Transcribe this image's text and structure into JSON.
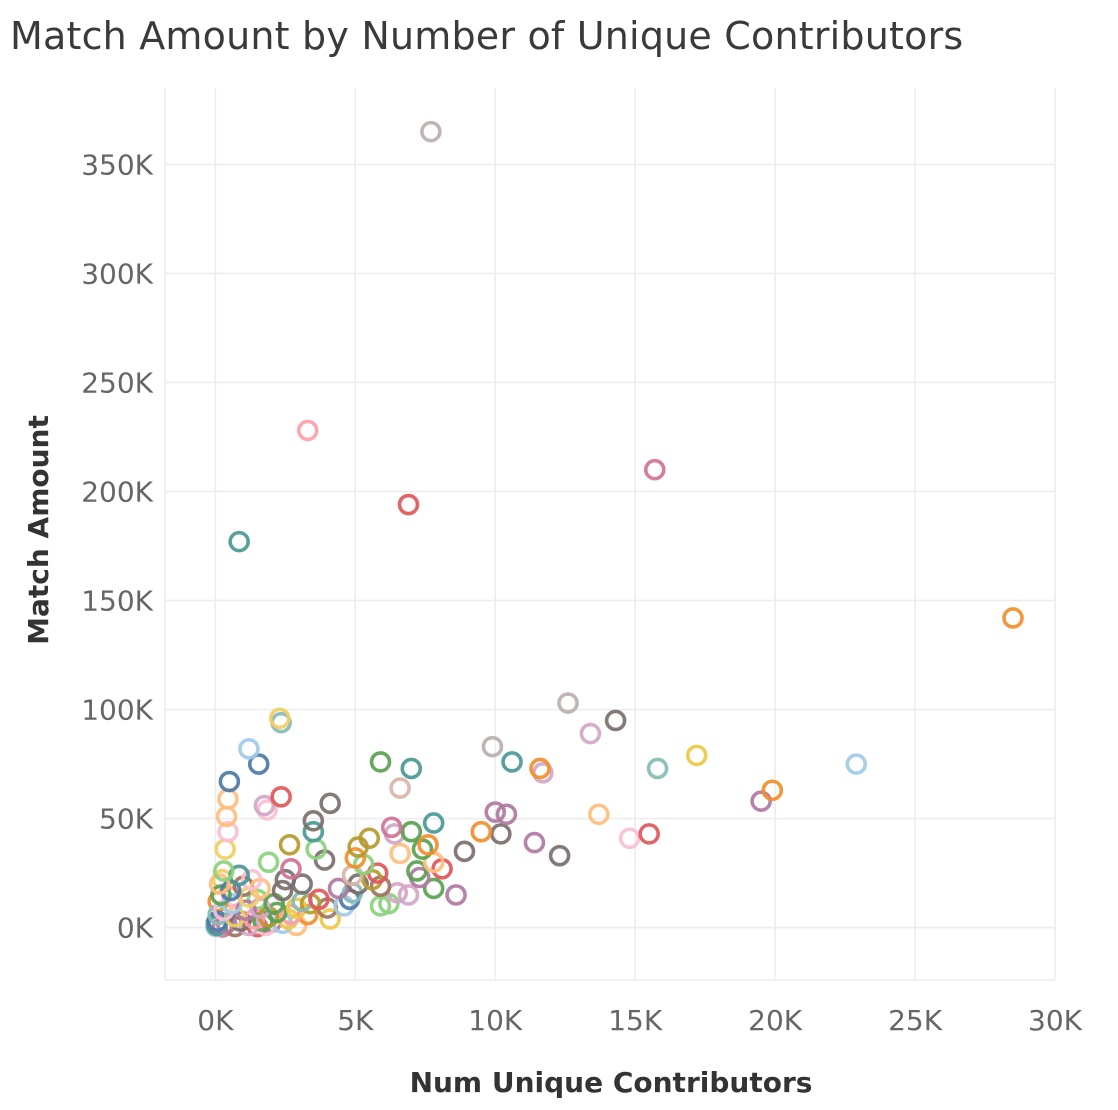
{
  "chart_data": {
    "type": "scatter",
    "title": "Match Amount by Number of Unique Contributors",
    "xlabel": "Num Unique Contributors",
    "ylabel": "Match Amount",
    "xlim": [
      -1800,
      30000
    ],
    "ylim": [
      -24000,
      385000
    ],
    "x_ticks": [
      0,
      5000,
      10000,
      15000,
      20000,
      25000,
      30000
    ],
    "x_tick_labels": [
      "0K",
      "5K",
      "10K",
      "15K",
      "20K",
      "25K",
      "30K"
    ],
    "y_ticks": [
      0,
      50000,
      100000,
      150000,
      200000,
      250000,
      300000,
      350000
    ],
    "y_tick_labels": [
      "0K",
      "50K",
      "100K",
      "150K",
      "200K",
      "250K",
      "300K",
      "350K"
    ],
    "grid": true,
    "legend": "none",
    "marker": "hollow-circle",
    "palette": [
      "#4e79a7",
      "#f28e2b",
      "#e15759",
      "#76b7b2",
      "#59a14f",
      "#edc948",
      "#b07aa1",
      "#ff9da7",
      "#9c755f",
      "#bab0ac",
      "#a0cbe8",
      "#ffbe7d",
      "#8cd17d",
      "#b6992d",
      "#f1ce63",
      "#499894",
      "#86bcb6",
      "#d37295",
      "#fabfd2",
      "#d4a6c8",
      "#79706e",
      "#d7b5a6"
    ],
    "points": [
      {
        "x": 7700,
        "y": 365000,
        "c": "#bab0ac"
      },
      {
        "x": 3300,
        "y": 228000,
        "c": "#ff9da7"
      },
      {
        "x": 15700,
        "y": 210000,
        "c": "#d37295"
      },
      {
        "x": 6900,
        "y": 194000,
        "c": "#e15759"
      },
      {
        "x": 850,
        "y": 177000,
        "c": "#499894"
      },
      {
        "x": 28500,
        "y": 142000,
        "c": "#f28e2b"
      },
      {
        "x": 12600,
        "y": 103000,
        "c": "#bab0ac"
      },
      {
        "x": 2300,
        "y": 96000,
        "c": "#f1ce63"
      },
      {
        "x": 14300,
        "y": 95000,
        "c": "#79706e"
      },
      {
        "x": 2350,
        "y": 94000,
        "c": "#86bcb6"
      },
      {
        "x": 13400,
        "y": 89000,
        "c": "#d4a6c8"
      },
      {
        "x": 9900,
        "y": 83000,
        "c": "#bab0ac"
      },
      {
        "x": 1200,
        "y": 82000,
        "c": "#a0cbe8"
      },
      {
        "x": 17200,
        "y": 79000,
        "c": "#edc948"
      },
      {
        "x": 5900,
        "y": 76000,
        "c": "#59a14f"
      },
      {
        "x": 10600,
        "y": 76000,
        "c": "#499894"
      },
      {
        "x": 1550,
        "y": 75000,
        "c": "#4e79a7"
      },
      {
        "x": 22900,
        "y": 75000,
        "c": "#a0cbe8"
      },
      {
        "x": 7000,
        "y": 73000,
        "c": "#499894"
      },
      {
        "x": 11600,
        "y": 73000,
        "c": "#f28e2b"
      },
      {
        "x": 15800,
        "y": 73000,
        "c": "#86bcb6"
      },
      {
        "x": 11700,
        "y": 71000,
        "c": "#d4a6c8"
      },
      {
        "x": 500,
        "y": 67000,
        "c": "#4e79a7"
      },
      {
        "x": 6600,
        "y": 64000,
        "c": "#d7b5a6"
      },
      {
        "x": 19900,
        "y": 63000,
        "c": "#f28e2b"
      },
      {
        "x": 2350,
        "y": 60000,
        "c": "#e15759"
      },
      {
        "x": 450,
        "y": 59000,
        "c": "#ffbe7d"
      },
      {
        "x": 19500,
        "y": 58000,
        "c": "#b07aa1"
      },
      {
        "x": 4100,
        "y": 57000,
        "c": "#79706e"
      },
      {
        "x": 1750,
        "y": 56000,
        "c": "#d4a6c8"
      },
      {
        "x": 1850,
        "y": 54000,
        "c": "#fabfd2"
      },
      {
        "x": 10000,
        "y": 53000,
        "c": "#b07aa1"
      },
      {
        "x": 10400,
        "y": 52000,
        "c": "#b07aa1"
      },
      {
        "x": 13700,
        "y": 52000,
        "c": "#ffbe7d"
      },
      {
        "x": 400,
        "y": 51000,
        "c": "#ffbe7d"
      },
      {
        "x": 3500,
        "y": 49000,
        "c": "#79706e"
      },
      {
        "x": 7800,
        "y": 48000,
        "c": "#499894"
      },
      {
        "x": 6300,
        "y": 46000,
        "c": "#d37295"
      },
      {
        "x": 9500,
        "y": 44000,
        "c": "#f28e2b"
      },
      {
        "x": 7000,
        "y": 44000,
        "c": "#59a14f"
      },
      {
        "x": 3500,
        "y": 44000,
        "c": "#499894"
      },
      {
        "x": 450,
        "y": 44000,
        "c": "#fabfd2"
      },
      {
        "x": 10200,
        "y": 43000,
        "c": "#79706e"
      },
      {
        "x": 15500,
        "y": 43000,
        "c": "#e15759"
      },
      {
        "x": 6400,
        "y": 43000,
        "c": "#d4a6c8"
      },
      {
        "x": 5500,
        "y": 41000,
        "c": "#b6992d"
      },
      {
        "x": 14800,
        "y": 41000,
        "c": "#fabfd2"
      },
      {
        "x": 11400,
        "y": 39000,
        "c": "#b07aa1"
      },
      {
        "x": 2650,
        "y": 38000,
        "c": "#b6992d"
      },
      {
        "x": 7600,
        "y": 38000,
        "c": "#f28e2b"
      },
      {
        "x": 5100,
        "y": 37000,
        "c": "#b6992d"
      },
      {
        "x": 350,
        "y": 36000,
        "c": "#f1ce63"
      },
      {
        "x": 7400,
        "y": 36000,
        "c": "#59a14f"
      },
      {
        "x": 3600,
        "y": 36000,
        "c": "#8cd17d"
      },
      {
        "x": 8900,
        "y": 35000,
        "c": "#79706e"
      },
      {
        "x": 6600,
        "y": 34000,
        "c": "#ffbe7d"
      },
      {
        "x": 12300,
        "y": 33000,
        "c": "#79706e"
      },
      {
        "x": 5000,
        "y": 32000,
        "c": "#f28e2b"
      },
      {
        "x": 3900,
        "y": 31000,
        "c": "#79706e"
      },
      {
        "x": 1900,
        "y": 30000,
        "c": "#8cd17d"
      },
      {
        "x": 7800,
        "y": 30000,
        "c": "#ffbe7d"
      },
      {
        "x": 5300,
        "y": 29000,
        "c": "#8cd17d"
      },
      {
        "x": 2700,
        "y": 27000,
        "c": "#d37295"
      },
      {
        "x": 8100,
        "y": 27000,
        "c": "#e15759"
      },
      {
        "x": 300,
        "y": 26000,
        "c": "#8cd17d"
      },
      {
        "x": 7200,
        "y": 26000,
        "c": "#59a14f"
      },
      {
        "x": 5800,
        "y": 25000,
        "c": "#e15759"
      },
      {
        "x": 4900,
        "y": 24000,
        "c": "#d7b5a6"
      },
      {
        "x": 850,
        "y": 24000,
        "c": "#499894"
      },
      {
        "x": 7300,
        "y": 23000,
        "c": "#b07aa1"
      },
      {
        "x": 1300,
        "y": 22000,
        "c": "#fabfd2"
      },
      {
        "x": 2500,
        "y": 22000,
        "c": "#79706e"
      },
      {
        "x": 5600,
        "y": 22000,
        "c": "#b6992d"
      },
      {
        "x": 150,
        "y": 20000,
        "c": "#ffbe7d"
      },
      {
        "x": 3100,
        "y": 20000,
        "c": "#79706e"
      },
      {
        "x": 5100,
        "y": 20000,
        "c": "#79706e"
      },
      {
        "x": 5900,
        "y": 19000,
        "c": "#9c755f"
      },
      {
        "x": 7800,
        "y": 18000,
        "c": "#59a14f"
      },
      {
        "x": 1600,
        "y": 18000,
        "c": "#ffbe7d"
      },
      {
        "x": 4400,
        "y": 18000,
        "c": "#b07aa1"
      },
      {
        "x": 550,
        "y": 17000,
        "c": "#4e79a7"
      },
      {
        "x": 2400,
        "y": 17000,
        "c": "#79706e"
      },
      {
        "x": 6500,
        "y": 16000,
        "c": "#d4a6c8"
      },
      {
        "x": 4900,
        "y": 16000,
        "c": "#86bcb6"
      },
      {
        "x": 200,
        "y": 15000,
        "c": "#59a14f"
      },
      {
        "x": 6900,
        "y": 15000,
        "c": "#d4a6c8"
      },
      {
        "x": 8600,
        "y": 15000,
        "c": "#b07aa1"
      },
      {
        "x": 1200,
        "y": 14000,
        "c": "#f1ce63"
      },
      {
        "x": 3700,
        "y": 13000,
        "c": "#e15759"
      },
      {
        "x": 4800,
        "y": 13000,
        "c": "#4e79a7"
      },
      {
        "x": 3100,
        "y": 12000,
        "c": "#86bcb6"
      },
      {
        "x": 2100,
        "y": 11000,
        "c": "#59a14f"
      },
      {
        "x": 3400,
        "y": 11000,
        "c": "#b6992d"
      },
      {
        "x": 6200,
        "y": 11000,
        "c": "#8cd17d"
      },
      {
        "x": 600,
        "y": 11000,
        "c": "#a0cbe8"
      },
      {
        "x": 4600,
        "y": 10000,
        "c": "#a0cbe8"
      },
      {
        "x": 5900,
        "y": 10000,
        "c": "#8cd17d"
      },
      {
        "x": 2900,
        "y": 9000,
        "c": "#edc948"
      },
      {
        "x": 1600,
        "y": 9000,
        "c": "#d4a6c8"
      },
      {
        "x": 4000,
        "y": 9000,
        "c": "#9c755f"
      },
      {
        "x": 300,
        "y": 8000,
        "c": "#fabfd2"
      },
      {
        "x": 1100,
        "y": 8000,
        "c": "#b07aa1"
      },
      {
        "x": 2200,
        "y": 7000,
        "c": "#59a14f"
      },
      {
        "x": 2700,
        "y": 6000,
        "c": "#ff9da7"
      },
      {
        "x": 3300,
        "y": 6000,
        "c": "#f28e2b"
      },
      {
        "x": 100,
        "y": 6000,
        "c": "#86bcb6"
      },
      {
        "x": 1900,
        "y": 5000,
        "c": "#b6992d"
      },
      {
        "x": 700,
        "y": 5000,
        "c": "#f1ce63"
      },
      {
        "x": 1400,
        "y": 4000,
        "c": "#ff9da7"
      },
      {
        "x": 2600,
        "y": 4000,
        "c": "#edc948"
      },
      {
        "x": 4100,
        "y": 4000,
        "c": "#edc948"
      },
      {
        "x": 80,
        "y": 3000,
        "c": "#4e79a7"
      },
      {
        "x": 900,
        "y": 3000,
        "c": "#79706e"
      },
      {
        "x": 1700,
        "y": 3000,
        "c": "#59a14f"
      },
      {
        "x": 2400,
        "y": 2000,
        "c": "#a0cbe8"
      },
      {
        "x": 400,
        "y": 2000,
        "c": "#b07aa1"
      },
      {
        "x": 1200,
        "y": 1000,
        "c": "#d4a6c8"
      },
      {
        "x": 50,
        "y": 1000,
        "c": "#499894"
      },
      {
        "x": 1800,
        "y": 1000,
        "c": "#fabfd2"
      },
      {
        "x": 2900,
        "y": 1000,
        "c": "#ffbe7d"
      },
      {
        "x": 700,
        "y": 500,
        "c": "#9c755f"
      },
      {
        "x": 20,
        "y": 500,
        "c": "#a0cbe8"
      },
      {
        "x": 1500,
        "y": 500,
        "c": "#e15759"
      },
      {
        "x": 250,
        "y": 300,
        "c": "#d37295"
      },
      {
        "x": 100,
        "y": 12000,
        "c": "#f28e2b"
      },
      {
        "x": 250,
        "y": 22000,
        "c": "#f1ce63"
      },
      {
        "x": 1000,
        "y": 19000,
        "c": "#9c755f"
      },
      {
        "x": 1500,
        "y": 13000,
        "c": "#8cd17d"
      },
      {
        "x": 2000,
        "y": 2500,
        "c": "#b07aa1"
      },
      {
        "x": 600,
        "y": 14000,
        "c": "#ff9da7"
      },
      {
        "x": 30,
        "y": 2000,
        "c": "#4e79a7"
      }
    ]
  }
}
